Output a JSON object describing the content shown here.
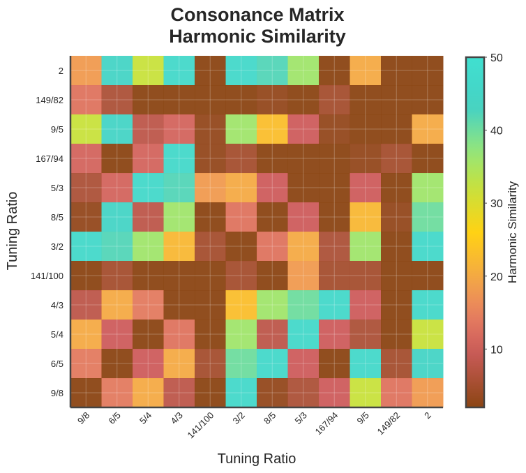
{
  "chart_data": {
    "type": "heatmap",
    "title_lines": [
      "Consonance Matrix",
      "Harmonic Similarity"
    ],
    "xlabel": "Tuning Ratio",
    "ylabel": "Tuning Ratio",
    "x_categories": [
      "9/8",
      "6/5",
      "5/4",
      "4/3",
      "141/100",
      "3/2",
      "8/5",
      "5/3",
      "167/94",
      "9/5",
      "149/82",
      "2"
    ],
    "y_categories_top_to_bottom": [
      "2",
      "149/82",
      "9/5",
      "167/94",
      "5/3",
      "8/5",
      "3/2",
      "141/100",
      "4/3",
      "5/4",
      "6/5",
      "9/8"
    ],
    "colorbar": {
      "label": "Harmonic Similarity",
      "range": [
        2,
        50
      ],
      "ticks": [
        10,
        20,
        30,
        40,
        50
      ]
    },
    "values_rows_top_to_bottom": [
      [
        18,
        44,
        32,
        46,
        2,
        46,
        42,
        36,
        2,
        20,
        2,
        2
      ],
      [
        13,
        6,
        2,
        2,
        2,
        2,
        3,
        2,
        5,
        2,
        2,
        2
      ],
      [
        32,
        44,
        8,
        11,
        3,
        36,
        23,
        10,
        3,
        2,
        2,
        20
      ],
      [
        11,
        2,
        11,
        46,
        3,
        5,
        2,
        2,
        2,
        3,
        5,
        2
      ],
      [
        6,
        11,
        46,
        42,
        18,
        20,
        10,
        2,
        2,
        10,
        2,
        36
      ],
      [
        3,
        44,
        8,
        36,
        2,
        13,
        2,
        10,
        2,
        22,
        3,
        40
      ],
      [
        46,
        42,
        36,
        22,
        5,
        2,
        13,
        20,
        6,
        36,
        2,
        46
      ],
      [
        2,
        5,
        2,
        2,
        2,
        5,
        2,
        18,
        5,
        5,
        2,
        2
      ],
      [
        8,
        20,
        14,
        2,
        2,
        23,
        36,
        40,
        46,
        10,
        2,
        46
      ],
      [
        20,
        10,
        2,
        13,
        2,
        36,
        8,
        46,
        10,
        6,
        2,
        32
      ],
      [
        14,
        2,
        10,
        20,
        5,
        40,
        46,
        10,
        2,
        46,
        5,
        44
      ],
      [
        2,
        14,
        20,
        8,
        2,
        46,
        3,
        6,
        10,
        32,
        13,
        18
      ]
    ],
    "grid": true
  }
}
